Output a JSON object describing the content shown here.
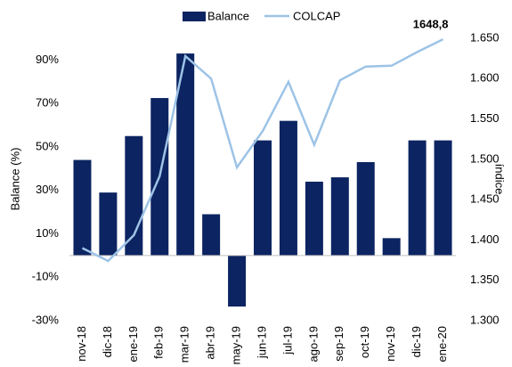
{
  "chart_data": {
    "type": "bar-line",
    "y_label": "Balance (%)",
    "y2_label": "índice",
    "categories": [
      "nov-18",
      "dic-18",
      "ene-19",
      "feb-19",
      "mar-19",
      "abr-19",
      "may-19",
      "jun-19",
      "jul-19",
      "ago-19",
      "sep-19",
      "oct-19",
      "nov-19",
      "dic-19",
      "ene-20"
    ],
    "series": [
      {
        "name": "Balance",
        "type": "bar",
        "color": "#0c2461",
        "values": [
          44,
          29,
          55,
          72.5,
          93,
          19,
          -23.5,
          53,
          62,
          34,
          36,
          43,
          8,
          53,
          53
        ]
      },
      {
        "name": "COLCAP",
        "type": "line",
        "axis": "y2",
        "color": "#9dc3e6",
        "values": [
          1390,
          1374,
          1406,
          1479,
          1628,
          1600,
          1490,
          1535,
          1596,
          1518,
          1598,
          1615,
          1616,
          1633,
          1648.8
        ],
        "value_labels": [
          null,
          null,
          null,
          null,
          null,
          null,
          null,
          null,
          null,
          null,
          null,
          null,
          null,
          null,
          "1648,8"
        ]
      }
    ],
    "ylim": [
      -30,
      100
    ],
    "yticks": [
      {
        "value": -30,
        "label": "-30%"
      },
      {
        "value": -10,
        "label": "-10%"
      },
      {
        "value": 10,
        "label": "10%"
      },
      {
        "value": 30,
        "label": "30%"
      },
      {
        "value": 50,
        "label": "50%"
      },
      {
        "value": 70,
        "label": "70%"
      },
      {
        "value": 90,
        "label": "90%"
      }
    ],
    "y2lim": [
      1300,
      1650
    ],
    "y2ticks": [
      {
        "value": 1300,
        "label": "1.300"
      },
      {
        "value": 1350,
        "label": "1.350"
      },
      {
        "value": 1400,
        "label": "1.400"
      },
      {
        "value": 1450,
        "label": "1.450"
      },
      {
        "value": 1500,
        "label": "1.500"
      },
      {
        "value": 1550,
        "label": "1.550"
      },
      {
        "value": 1600,
        "label": "1.600"
      },
      {
        "value": 1650,
        "label": "1.650"
      }
    ],
    "legend": "top"
  }
}
